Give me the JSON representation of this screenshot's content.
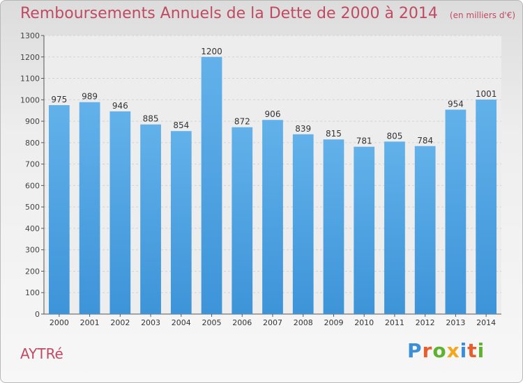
{
  "title": "Remboursements Annuels de la Dette de 2000 à 2014",
  "unit_label": "(en milliers d'€)",
  "town": "AYTRé",
  "logo": {
    "letters": [
      "P",
      "r",
      "o",
      "x",
      "i",
      "t",
      "i"
    ],
    "colors": [
      "#3a8fd8",
      "#e85d2b",
      "#5fb230",
      "#f2a81d",
      "#3a8fd8",
      "#e85d2b",
      "#5fb230"
    ]
  },
  "colors": {
    "bar": "#3d94d8",
    "bar_light": "#62b1ea",
    "grid": "#d3d3d3",
    "axis": "#555555"
  },
  "chart_data": {
    "type": "bar",
    "categories": [
      "2000",
      "2001",
      "2002",
      "2003",
      "2004",
      "2005",
      "2006",
      "2007",
      "2008",
      "2009",
      "2010",
      "2011",
      "2012",
      "2013",
      "2014"
    ],
    "values": [
      975,
      989,
      946,
      885,
      854,
      1200,
      872,
      906,
      839,
      815,
      781,
      805,
      784,
      954,
      1001
    ],
    "ylim": [
      0,
      1300
    ],
    "yticks": [
      0,
      100,
      200,
      300,
      400,
      500,
      600,
      700,
      800,
      900,
      1000,
      1100,
      1200,
      1300
    ],
    "title": "Remboursements Annuels de la Dette de 2000 à 2014",
    "xlabel": "",
    "ylabel": "",
    "grid": true
  }
}
